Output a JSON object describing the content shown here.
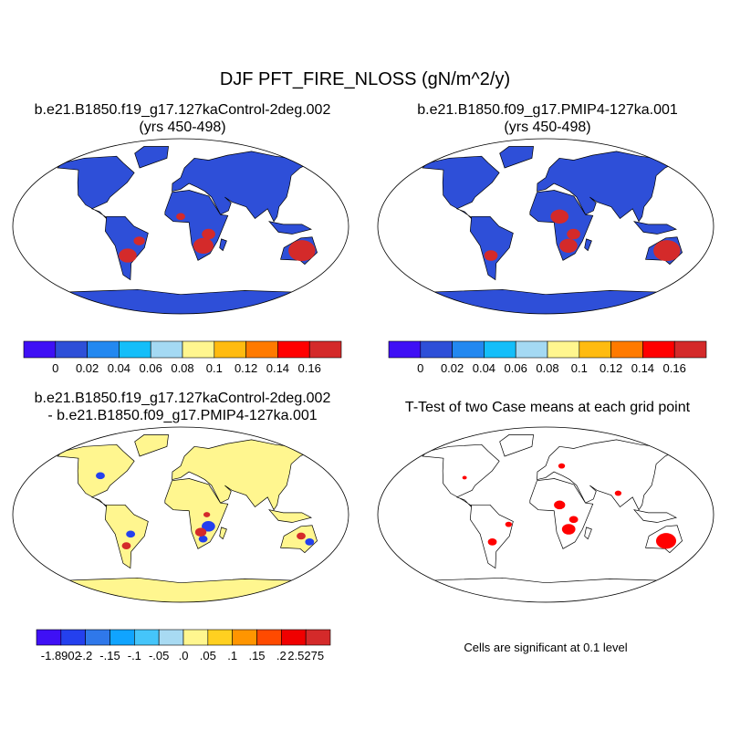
{
  "title": "DJF PFT_FIRE_NLOSS (gN/m^2/y)",
  "colors": {
    "land_case": "#2e4fd8",
    "land_diff": "#fff68f",
    "significant": "#ff0000"
  },
  "chart_data": [
    {
      "type": "map",
      "title": "b.e21.B1850.f19_g17.127kaControl-2deg.002",
      "subtitle": "(yrs 450-498)",
      "colorbar": {
        "labels": [
          "0",
          "0.02",
          "0.04",
          "0.06",
          "0.08",
          "0.1",
          "0.12",
          "0.14",
          "0.16"
        ],
        "colors": [
          "#3f10f5",
          "#2e4fd8",
          "#2388f0",
          "#14bef9",
          "#a4d9f3",
          "#fff68f",
          "#ffbb10",
          "#ff7a00",
          "#ff0000",
          "#d42a2a"
        ]
      }
    },
    {
      "type": "map",
      "title": "b.e21.B1850.f09_g17.PMIP4-127ka.001",
      "subtitle": "(yrs 450-498)",
      "colorbar": {
        "labels": [
          "0",
          "0.02",
          "0.04",
          "0.06",
          "0.08",
          "0.1",
          "0.12",
          "0.14",
          "0.16"
        ],
        "colors": [
          "#3f10f5",
          "#2e4fd8",
          "#2388f0",
          "#14bef9",
          "#a4d9f3",
          "#fff68f",
          "#ffbb10",
          "#ff7a00",
          "#ff0000",
          "#d42a2a"
        ]
      }
    },
    {
      "type": "map",
      "title": "b.e21.B1850.f19_g17.127kaControl-2deg.002",
      "subtitle": "- b.e21.B1850.f09_g17.PMIP4-127ka.001",
      "colorbar": {
        "labels": [
          "-1.8902",
          "-.2",
          "-.15",
          "-.1",
          "-.05",
          ".0",
          ".05",
          ".1",
          ".15",
          ".2",
          "2.5275"
        ],
        "colors": [
          "#3f10f5",
          "#2440ee",
          "#2f78ea",
          "#10a4ff",
          "#45c5fa",
          "#a8daf2",
          "#fff68f",
          "#ffd020",
          "#ff9500",
          "#ff4a00",
          "#f00000",
          "#d42a2a"
        ]
      }
    },
    {
      "type": "map",
      "title": "T-Test of two Case means at each grid point",
      "note": "Cells are significant at 0.1 level"
    }
  ]
}
